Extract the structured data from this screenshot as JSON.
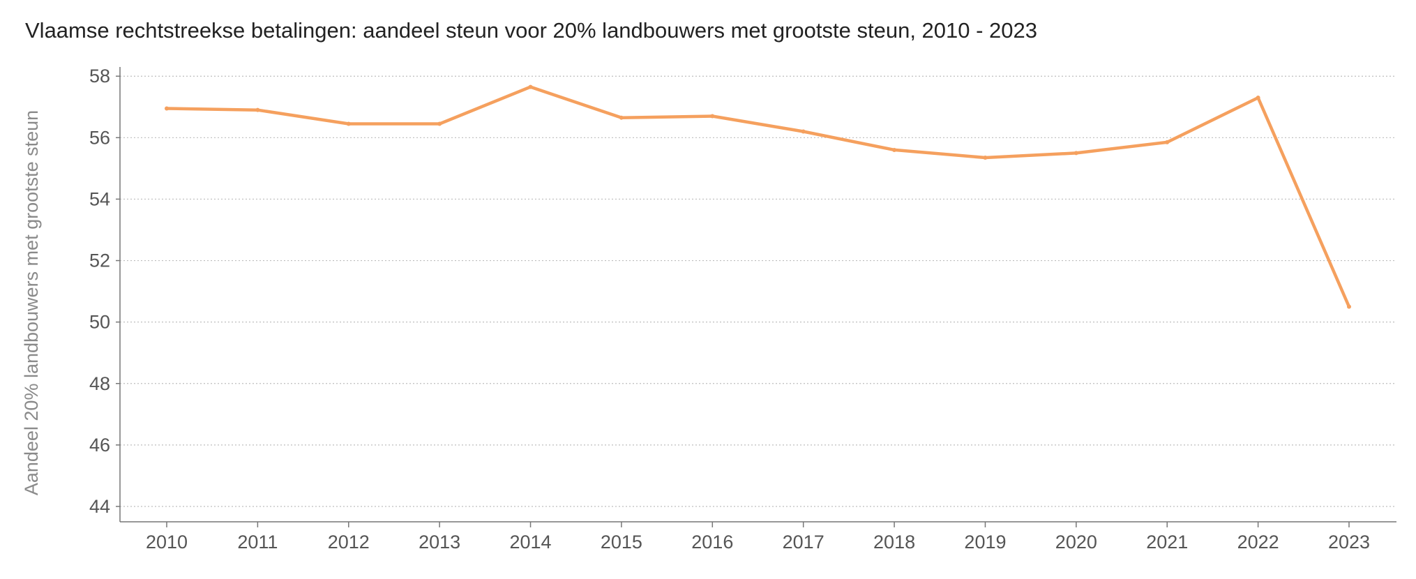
{
  "chart_data": {
    "type": "line",
    "title": "Vlaamse rechtstreekse betalingen: aandeel steun voor 20% landbouwers met grootste steun, 2010 - 2023",
    "xlabel": "",
    "ylabel": "Aandeel 20% landbouwers met grootste steun",
    "x": [
      "2010",
      "2011",
      "2012",
      "2013",
      "2014",
      "2015",
      "2016",
      "2017",
      "2018",
      "2019",
      "2020",
      "2021",
      "2022",
      "2023"
    ],
    "series": [
      {
        "values": [
          56.95,
          56.9,
          56.45,
          56.45,
          57.65,
          56.65,
          56.7,
          56.2,
          55.6,
          55.35,
          55.5,
          55.85,
          57.3,
          50.5
        ],
        "color": "#f5a05e"
      }
    ],
    "ylim": [
      43.5,
      58.3
    ],
    "yticks": [
      44,
      46,
      48,
      50,
      52,
      54,
      56,
      58
    ],
    "grid": true,
    "legend": "none"
  }
}
